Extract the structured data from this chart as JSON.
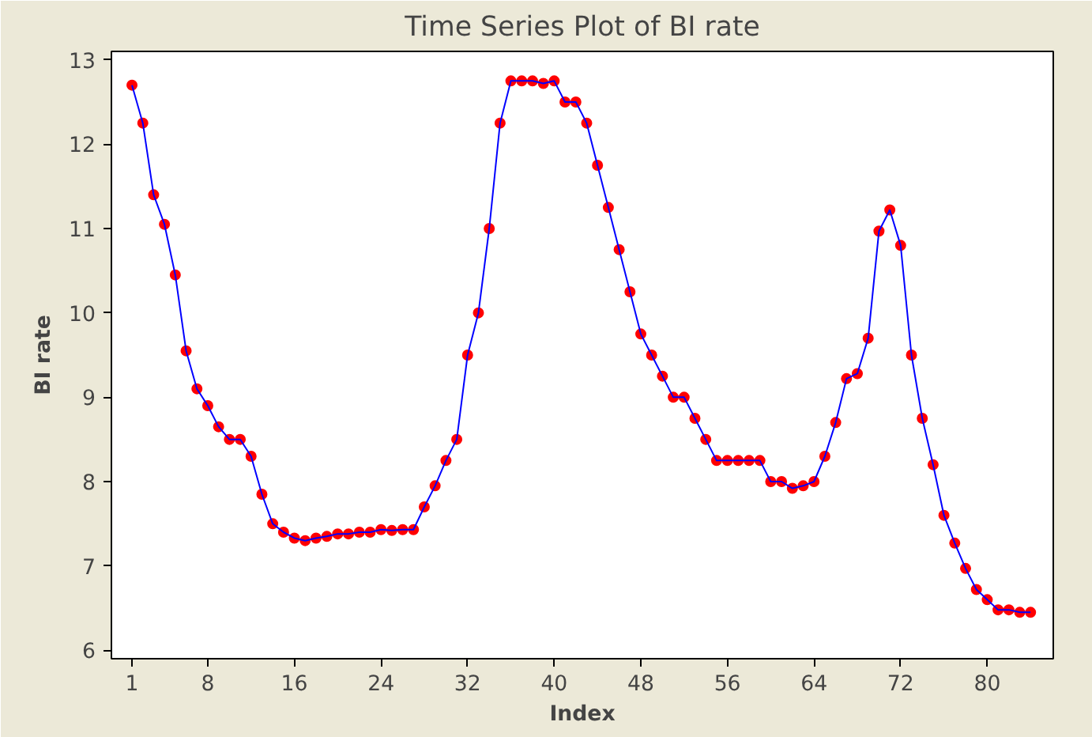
{
  "chart_data": {
    "type": "line",
    "title": "Time Series Plot of BI rate",
    "xlabel": "Index",
    "ylabel": "BI rate",
    "x": [
      1,
      2,
      3,
      4,
      5,
      6,
      7,
      8,
      9,
      10,
      11,
      12,
      13,
      14,
      15,
      16,
      17,
      18,
      19,
      20,
      21,
      22,
      23,
      24,
      25,
      26,
      27,
      28,
      29,
      30,
      31,
      32,
      33,
      34,
      35,
      36,
      37,
      38,
      39,
      40,
      41,
      42,
      43,
      44,
      45,
      46,
      47,
      48,
      49,
      50,
      51,
      52,
      53,
      54,
      55,
      56,
      57,
      58,
      59,
      60,
      61,
      62,
      63,
      64,
      65,
      66,
      67,
      68,
      69,
      70,
      71,
      72,
      73,
      74,
      75,
      76,
      77,
      78,
      79,
      80,
      81,
      82,
      83,
      84
    ],
    "series": [
      {
        "color": "#0000ff",
        "colors": [
          "#ff0000",
          "#ff0000",
          "#ff0000",
          "#ff0000",
          "#ff0000",
          "#ff0000",
          "#ff0000",
          "#ff0000",
          "#ff0000",
          "#ff0000",
          "#ff0000",
          "#ff0000",
          "#ff0000",
          "#ff0000",
          "#ff0000",
          "#ff0000",
          "#ff0000",
          "#ff0000",
          "#ff0000",
          "#ff0000",
          "#ff0000",
          "#ff0000",
          "#ff0000",
          "#ff0000",
          "#ff0000",
          "#ff0000",
          "#ff0000",
          "#ff0000",
          "#ff0000",
          "#ff0000",
          "#ff0000",
          "#ff0000",
          "#ff0000",
          "#ff0000",
          "#ff0000",
          "#ff0000",
          "#ff0000",
          "#ff0000",
          "#ff0000",
          "#ff0000",
          "#ff0000",
          "#ff0000",
          "#ff0000",
          "#ff0000",
          "#ff0000",
          "#ff0000",
          "#ff0000",
          "#ff0000",
          "#ff0000",
          "#ff0000",
          "#ff0000",
          "#ff0000",
          "#ff0000",
          "#ff0000",
          "#ff0000",
          "#ff0000",
          "#ff0000",
          "#ff0000",
          "#ff0000",
          "#ff0000",
          "#ff0000",
          "#ff0000",
          "#ff0000",
          "#ff0000",
          "#ff0000",
          "#ff0000",
          "#ff0000",
          "#ff0000",
          "#ff0000",
          "#ff0000",
          "#ff0000",
          "#ff0000",
          "#ff0000",
          "#ff0000",
          "#ff0000",
          "#ff0000",
          "#ff0000",
          "#ff0000",
          "#ff0000",
          "#ff0000",
          "#ff0000",
          "#ff0000",
          "#ff0000",
          "#ff0000"
        ],
        "values": [
          12.7,
          12.25,
          11.4,
          11.05,
          10.45,
          9.55,
          9.1,
          8.9,
          8.65,
          8.5,
          8.5,
          8.3,
          7.85,
          7.5,
          7.4,
          7.33,
          7.3,
          7.33,
          7.35,
          7.38,
          7.38,
          7.4,
          7.4,
          7.43,
          7.42,
          7.43,
          7.43,
          7.7,
          7.95,
          8.25,
          8.5,
          9.5,
          10.0,
          11.0,
          12.25,
          12.75,
          12.75,
          12.75,
          12.72,
          12.75,
          12.5,
          12.5,
          12.25,
          11.75,
          11.25,
          10.75,
          10.25,
          9.75,
          9.5,
          9.25,
          9.0,
          9.0,
          8.75,
          8.5,
          8.25,
          8.25,
          8.25,
          8.25,
          8.25,
          8.0,
          8.0,
          7.92,
          7.95,
          8.0,
          8.3,
          8.7,
          9.22,
          9.28,
          9.7,
          10.97,
          11.22,
          10.8,
          9.5,
          8.75,
          8.2,
          7.6,
          7.27,
          6.97,
          6.72,
          6.6,
          6.48,
          6.48,
          6.45,
          6.45
        ]
      }
    ],
    "xlim": [
      -0.9,
      86.1
    ],
    "xticks": [
      1,
      8,
      16,
      24,
      32,
      40,
      48,
      56,
      64,
      72,
      80
    ],
    "ylim": [
      5.9,
      13.1
    ],
    "yticks": [
      6,
      7,
      8,
      9,
      10,
      11,
      12,
      13
    ],
    "marker": "circle",
    "line_style": "solid",
    "grid": false
  }
}
